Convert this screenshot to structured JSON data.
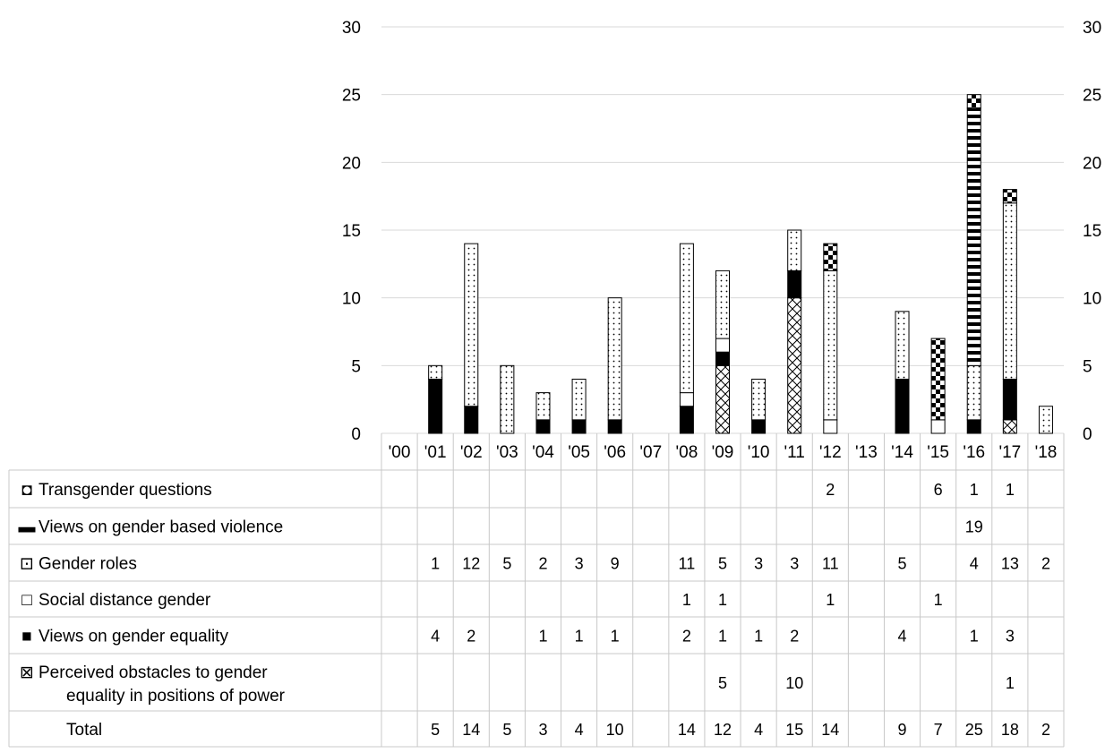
{
  "chart_data": {
    "type": "bar",
    "stacked": true,
    "categories": [
      "'00",
      "'01",
      "'02",
      "'03",
      "'04",
      "'05",
      "'06",
      "'07",
      "'08",
      "'09",
      "'10",
      "'11",
      "'12",
      "'13",
      "'14",
      "'15",
      "'16",
      "'17",
      "'18"
    ],
    "ylim": [
      0,
      30
    ],
    "yticks": [
      "0",
      "5",
      "10",
      "15",
      "20",
      "25",
      "30"
    ],
    "grid": true,
    "legend": "data-table-below",
    "series": [
      {
        "name": "Perceived obstacles to gender equality in positions of power",
        "label_lines": [
          "Perceived obstacles to gender",
          "equality in positions of power"
        ],
        "legend_symbol": "⊠",
        "pattern": "crosshatch",
        "values": [
          null,
          null,
          null,
          null,
          null,
          null,
          null,
          null,
          null,
          5,
          null,
          10,
          null,
          null,
          null,
          null,
          null,
          1,
          null
        ]
      },
      {
        "name": "Views on gender equality",
        "legend_symbol": "■",
        "pattern": "solid-black",
        "values": [
          null,
          4,
          2,
          null,
          1,
          1,
          1,
          null,
          2,
          1,
          1,
          2,
          null,
          null,
          4,
          null,
          1,
          3,
          null
        ]
      },
      {
        "name": "Social distance gender",
        "legend_symbol": "□",
        "pattern": "white",
        "values": [
          null,
          null,
          null,
          null,
          null,
          null,
          null,
          null,
          1,
          1,
          null,
          null,
          1,
          null,
          null,
          1,
          null,
          null,
          null
        ]
      },
      {
        "name": "Gender roles",
        "legend_symbol": "⊡",
        "pattern": "dotted",
        "values": [
          null,
          1,
          12,
          5,
          2,
          3,
          9,
          null,
          11,
          5,
          3,
          3,
          11,
          null,
          5,
          null,
          4,
          13,
          2
        ]
      },
      {
        "name": "Views on gender based violence",
        "legend_symbol": "▬",
        "pattern": "horizontal-stripes",
        "values": [
          null,
          null,
          null,
          null,
          null,
          null,
          null,
          null,
          null,
          null,
          null,
          null,
          null,
          null,
          null,
          null,
          19,
          null,
          null
        ]
      },
      {
        "name": "Transgender questions",
        "legend_symbol": "◘",
        "pattern": "checkerboard",
        "values": [
          null,
          null,
          null,
          null,
          null,
          null,
          null,
          null,
          null,
          null,
          null,
          null,
          2,
          null,
          null,
          6,
          1,
          1,
          null
        ]
      }
    ],
    "table_rows_order": [
      "Transgender questions",
      "Views on gender based violence",
      "Gender roles",
      "Social distance gender",
      "Views on gender equality",
      "Perceived obstacles to gender equality in positions of power"
    ],
    "total_label": "Total",
    "totals": [
      null,
      5,
      14,
      5,
      3,
      4,
      10,
      null,
      14,
      12,
      4,
      15,
      14,
      null,
      9,
      7,
      25,
      18,
      2
    ]
  }
}
